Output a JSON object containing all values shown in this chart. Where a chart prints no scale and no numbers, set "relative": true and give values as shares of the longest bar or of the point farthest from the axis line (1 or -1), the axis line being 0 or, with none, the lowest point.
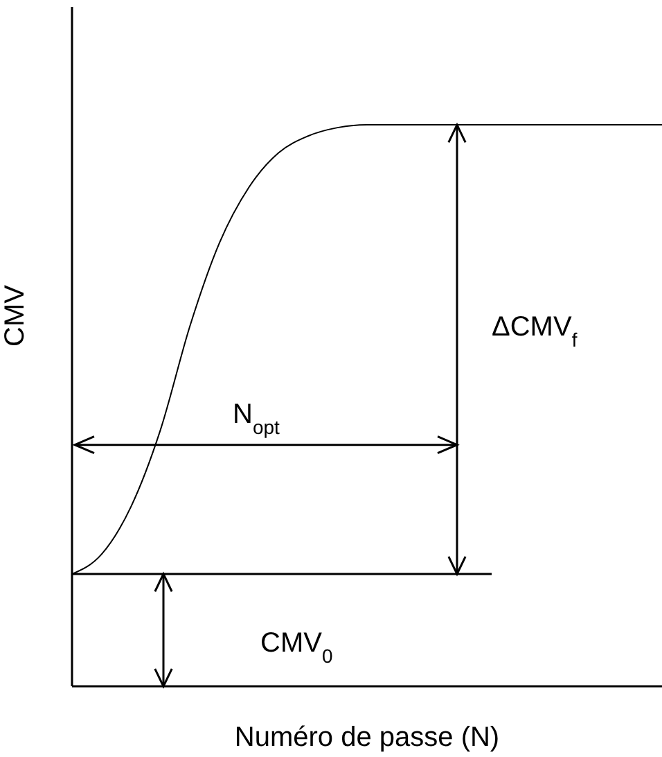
{
  "chart_data": {
    "type": "line",
    "relative": true,
    "xlabel": "Numéro de passe (N)",
    "ylabel": "CMV",
    "categories": [
      null,
      null,
      null,
      null,
      null,
      null,
      null,
      null,
      null,
      null,
      null,
      null,
      null,
      null,
      null,
      null,
      null,
      null,
      null,
      null,
      null
    ],
    "series": [
      {
        "color": "#000000",
        "values": [
          0.2,
          0.235,
          0.32,
          0.457,
          0.642,
          0.79,
          0.889,
          0.95,
          0.98,
          0.995,
          1,
          1,
          1,
          1,
          1,
          1,
          1,
          1,
          1,
          1,
          1
        ]
      }
    ],
    "ref_lines": [
      {
        "axis": "y",
        "value": 0.2,
        "color": "#000000"
      },
      {
        "axis": "y",
        "value": 0.43,
        "label": "N$_{opt}$",
        "color": "#000000"
      }
    ],
    "annotations": [
      "ΔCMV$_{f}$",
      "CMV$_{0}$"
    ],
    "marker": "none",
    "line_style": "solid",
    "grid": false,
    "legend": false
  }
}
